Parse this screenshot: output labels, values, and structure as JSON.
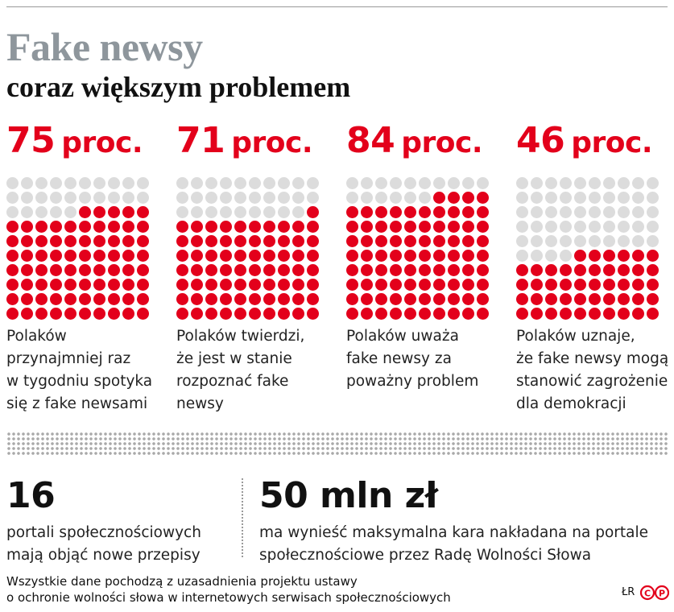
{
  "title": "Fake newsy",
  "subtitle": "coraz większym problemem",
  "colors": {
    "filled": "#e3001b",
    "empty": "#dcdcdc",
    "title": "#8e969c"
  },
  "chart_data": {
    "type": "waffle",
    "grid": {
      "rows": 10,
      "cols": 10
    },
    "items": [
      {
        "value": 75,
        "unit": "proc.",
        "description": [
          "Polaków",
          "przynajmniej raz",
          "w tygodniu spotyka",
          "się z fake newsami"
        ]
      },
      {
        "value": 71,
        "unit": "proc.",
        "description": [
          "Polaków twierdzi,",
          "że jest w stanie",
          "rozpoznać fake",
          "newsy"
        ]
      },
      {
        "value": 84,
        "unit": "proc.",
        "description": [
          "Polaków uważa",
          "fake newsy za",
          "poważny problem"
        ]
      },
      {
        "value": 46,
        "unit": "proc.",
        "description": [
          "Polaków uznaje,",
          "że fake newsy mogą",
          "stanowić zagrożenie",
          "dla demokracji"
        ]
      }
    ]
  },
  "facts": [
    {
      "value": "16",
      "description": [
        "portali społecznościowych",
        "mają objąć nowe przepisy"
      ]
    },
    {
      "value": "50 mln zł",
      "description": [
        "ma wynieść maksymalna kara nakładana na portale",
        "społecznościowe przez Radę Wolności Słowa"
      ]
    }
  ],
  "footnote": [
    "Wszystkie dane pochodzą z uzasadnienia projektu ustawy",
    "o ochronie wolności słowa w internetowych serwisach społecznościowych"
  ],
  "credit": "ŁR",
  "logo": "CP"
}
